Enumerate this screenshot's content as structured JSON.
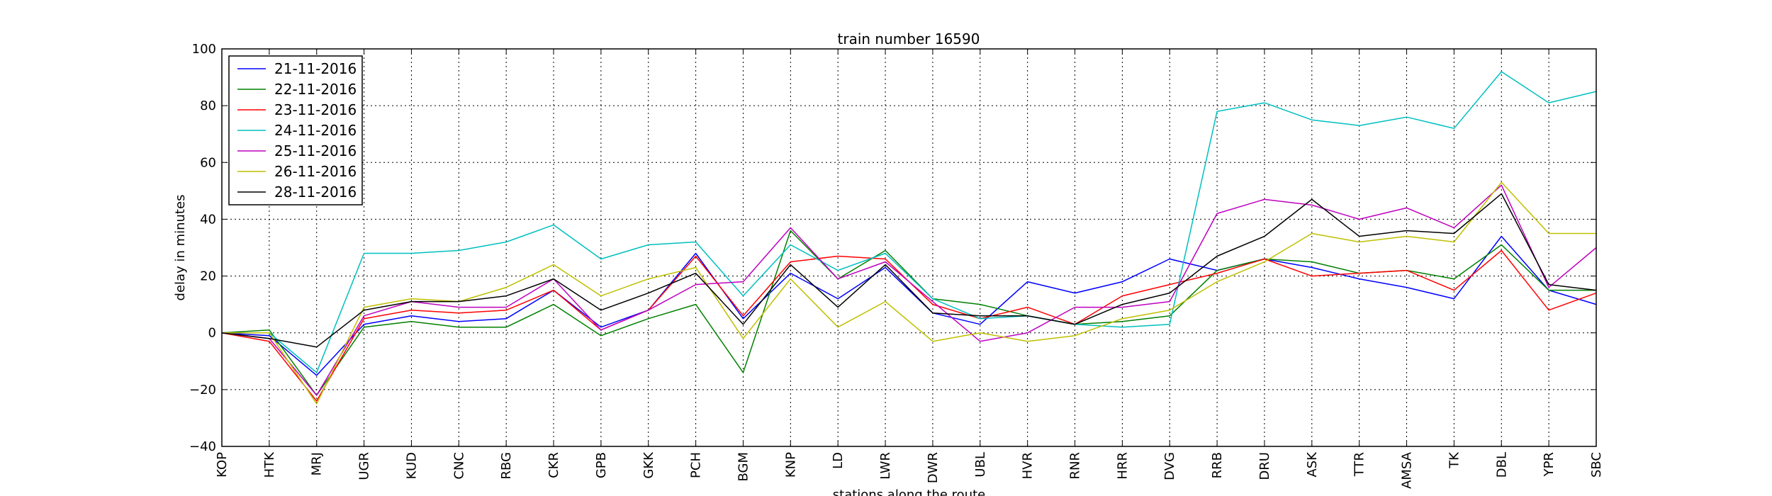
{
  "chart_data": {
    "type": "line",
    "title": "train number 16590",
    "xlabel": "stations along the route",
    "ylabel": "delay in minutes",
    "ylim": [
      -40,
      100
    ],
    "yticks": [
      -40,
      -20,
      0,
      20,
      40,
      60,
      80,
      100
    ],
    "grid": true,
    "legend_position": "top-left",
    "categories": [
      "KOP",
      "HTK",
      "MRJ",
      "UGR",
      "KUD",
      "CNC",
      "RBG",
      "CKR",
      "GPB",
      "GKK",
      "PCH",
      "BGM",
      "KNP",
      "LD",
      "LWR",
      "DWR",
      "UBL",
      "HVR",
      "RNR",
      "HRR",
      "DVG",
      "RRB",
      "DRU",
      "ASK",
      "TTR",
      "AMSA",
      "TK",
      "DBL",
      "YPR",
      "SBC"
    ],
    "series": [
      {
        "name": "21-11-2016",
        "color": "#0000ff",
        "values": [
          0,
          -1,
          -15,
          3,
          6,
          4,
          5,
          15,
          2,
          8,
          28,
          5,
          21,
          12,
          23,
          7,
          3,
          18,
          14,
          18,
          26,
          22,
          26,
          23,
          19,
          16,
          12,
          34,
          15,
          10
        ]
      },
      {
        "name": "22-11-2016",
        "color": "#008000",
        "values": [
          0,
          1,
          -22,
          2,
          4,
          2,
          2,
          10,
          -1,
          5,
          10,
          -14,
          36,
          19,
          29,
          12,
          10,
          6,
          3,
          4,
          6,
          22,
          26,
          25,
          21,
          22,
          19,
          31,
          15,
          15
        ]
      },
      {
        "name": "23-11-2016",
        "color": "#ff0000",
        "values": [
          0,
          -3,
          -24,
          5,
          8,
          7,
          8,
          15,
          1,
          8,
          27,
          6,
          25,
          27,
          26,
          10,
          5,
          9,
          3,
          13,
          17,
          21,
          26,
          20,
          21,
          22,
          15,
          29,
          8,
          14
        ]
      },
      {
        "name": "24-11-2016",
        "color": "#00bfbf",
        "values": [
          0,
          0,
          -14,
          28,
          28,
          29,
          32,
          38,
          26,
          31,
          32,
          13,
          31,
          22,
          28,
          12,
          5,
          6,
          3,
          2,
          3,
          78,
          81,
          75,
          73,
          76,
          72,
          92,
          81,
          85
        ]
      },
      {
        "name": "25-11-2016",
        "color": "#bf00bf",
        "values": [
          0,
          -2,
          -22,
          6,
          11,
          9,
          9,
          19,
          1,
          8,
          17,
          18,
          37,
          19,
          25,
          11,
          -3,
          0,
          9,
          9,
          11,
          42,
          47,
          45,
          40,
          44,
          37,
          52,
          16,
          30
        ]
      },
      {
        "name": "26-11-2016",
        "color": "#bfbf00",
        "values": [
          0,
          0,
          -25,
          9,
          12,
          11,
          16,
          24,
          13,
          19,
          23,
          -2,
          19,
          2,
          11,
          -3,
          0,
          -3,
          -1,
          5,
          8,
          18,
          25,
          35,
          32,
          34,
          32,
          53,
          35,
          35
        ]
      },
      {
        "name": "28-11-2016",
        "color": "#000000",
        "values": [
          0,
          -2,
          -5,
          8,
          11,
          11,
          13,
          19,
          8,
          14,
          21,
          3,
          24,
          9,
          24,
          7,
          6,
          6,
          3,
          10,
          14,
          27,
          34,
          47,
          34,
          36,
          35,
          49,
          17,
          15
        ]
      }
    ]
  }
}
